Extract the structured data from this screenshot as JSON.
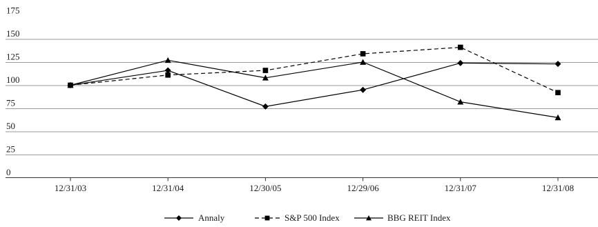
{
  "chart_data": {
    "type": "line",
    "categories": [
      "12/31/03",
      "12/31/04",
      "12/30/05",
      "12/29/06",
      "12/31/07",
      "12/31/08"
    ],
    "y_ticks": [
      0,
      25,
      50,
      75,
      100,
      125,
      150,
      175
    ],
    "ylim": [
      0,
      175
    ],
    "grid": true,
    "legend_position": "bottom",
    "series": [
      {
        "name": "Annaly",
        "marker": "diamond",
        "dash": "solid",
        "color": "#000000",
        "values": [
          100,
          116,
          77,
          95,
          124,
          123
        ]
      },
      {
        "name": "S&P 500 Index",
        "marker": "square",
        "dash": "dashed",
        "color": "#000000",
        "values": [
          100,
          111,
          116,
          134,
          141,
          92
        ]
      },
      {
        "name": "BBG REIT Index",
        "marker": "triangle",
        "dash": "solid",
        "color": "#000000",
        "values": [
          100,
          127,
          108,
          125,
          82,
          65
        ]
      }
    ]
  }
}
